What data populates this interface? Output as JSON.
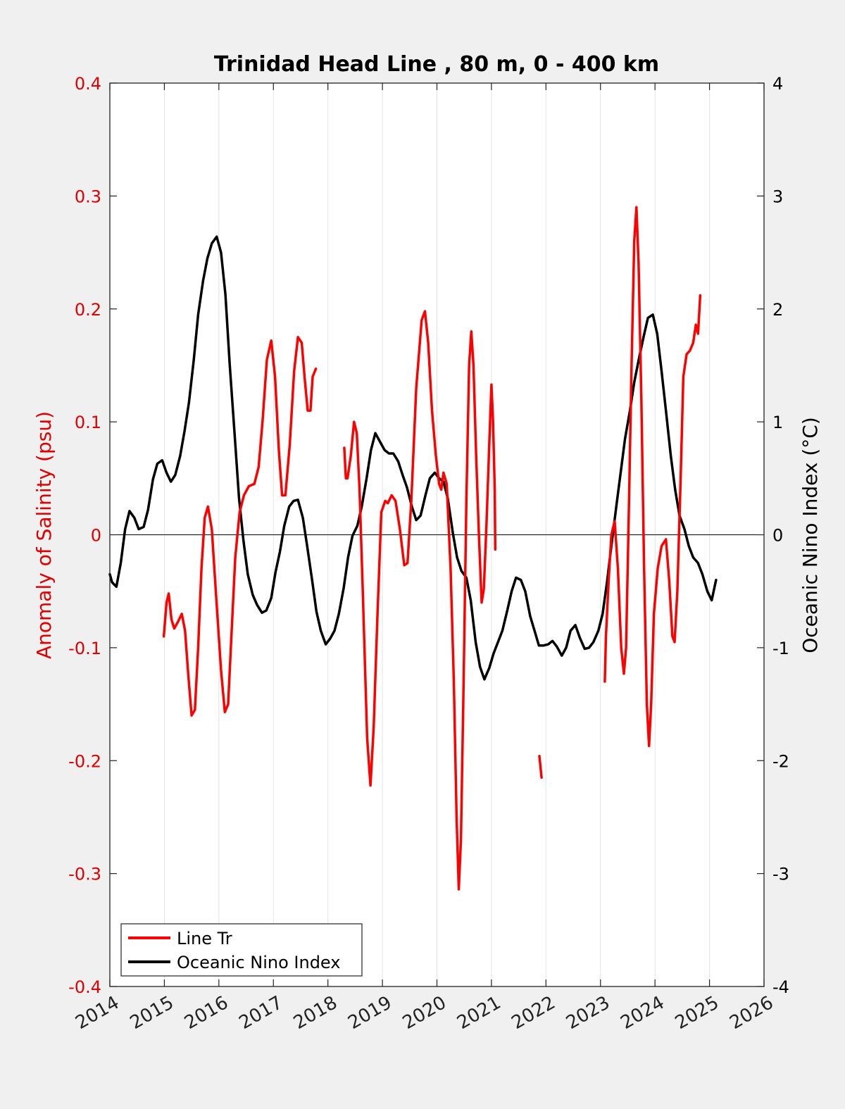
{
  "chart_data": {
    "type": "line",
    "title": "Trinidad Head Line , 80 m, 0 - 400 km",
    "ylabel_left": "Anomaly of Salinity (psu)",
    "ylabel_right": "Oceanic Nino Index (°C)",
    "xlim": [
      2014,
      2026
    ],
    "ylim_left": [
      -0.4,
      0.4
    ],
    "ylim_right": [
      -4,
      4
    ],
    "x_ticks": [
      "2014",
      "2015",
      "2016",
      "2017",
      "2018",
      "2019",
      "2020",
      "2021",
      "2022",
      "2023",
      "2024",
      "2025",
      "2026"
    ],
    "y_ticks_left": [
      "-0.4",
      "-0.3",
      "-0.2",
      "-0.1",
      "0",
      "0.1",
      "0.2",
      "0.3",
      "0.4"
    ],
    "y_ticks_right": [
      "-4",
      "-3",
      "-2",
      "-1",
      "0",
      "1",
      "2",
      "3",
      "4"
    ],
    "grid": "vertical",
    "legend_position": "bottom-left",
    "colors": {
      "line_tr": "#ff0000",
      "oni": "#000000"
    },
    "series": [
      {
        "name": "Line Tr",
        "axis": "left",
        "segments": [
          [
            [
              2014.99,
              -0.09
            ],
            [
              2015.04,
              -0.06
            ],
            [
              2015.08,
              -0.052
            ],
            [
              2015.13,
              -0.075
            ],
            [
              2015.18,
              -0.083
            ],
            [
              2015.25,
              -0.077
            ],
            [
              2015.32,
              -0.07
            ],
            [
              2015.38,
              -0.085
            ],
            [
              2015.44,
              -0.125
            ],
            [
              2015.5,
              -0.16
            ],
            [
              2015.56,
              -0.155
            ],
            [
              2015.62,
              -0.1
            ],
            [
              2015.68,
              -0.03
            ],
            [
              2015.74,
              0.015
            ],
            [
              2015.8,
              0.025
            ],
            [
              2015.87,
              0.005
            ],
            [
              2015.95,
              -0.055
            ],
            [
              2016.04,
              -0.12
            ],
            [
              2016.11,
              -0.157
            ],
            [
              2016.17,
              -0.15
            ],
            [
              2016.23,
              -0.09
            ],
            [
              2016.3,
              -0.02
            ],
            [
              2016.38,
              0.02
            ],
            [
              2016.46,
              0.035
            ],
            [
              2016.55,
              0.043
            ],
            [
              2016.65,
              0.045
            ],
            [
              2016.73,
              0.06
            ],
            [
              2016.8,
              0.1
            ],
            [
              2016.88,
              0.155
            ],
            [
              2016.96,
              0.172
            ],
            [
              2017.03,
              0.14
            ],
            [
              2017.1,
              0.075
            ],
            [
              2017.16,
              0.035
            ],
            [
              2017.22,
              0.035
            ],
            [
              2017.3,
              0.08
            ],
            [
              2017.38,
              0.145
            ],
            [
              2017.45,
              0.175
            ],
            [
              2017.52,
              0.17
            ],
            [
              2017.58,
              0.135
            ],
            [
              2017.63,
              0.11
            ],
            [
              2017.68,
              0.11
            ],
            [
              2017.72,
              0.14
            ],
            [
              2017.78,
              0.147
            ]
          ],
          [
            [
              2018.3,
              0.077
            ],
            [
              2018.33,
              0.05
            ],
            [
              2018.36,
              0.05
            ],
            [
              2018.42,
              0.07
            ],
            [
              2018.48,
              0.1
            ],
            [
              2018.53,
              0.09
            ],
            [
              2018.58,
              0.04
            ],
            [
              2018.64,
              -0.05
            ],
            [
              2018.72,
              -0.18
            ],
            [
              2018.78,
              -0.222
            ],
            [
              2018.84,
              -0.17
            ],
            [
              2018.91,
              -0.07
            ],
            [
              2018.98,
              0.02
            ],
            [
              2019.05,
              0.03
            ],
            [
              2019.1,
              0.028
            ],
            [
              2019.17,
              0.035
            ],
            [
              2019.24,
              0.03
            ],
            [
              2019.32,
              0.005
            ],
            [
              2019.4,
              -0.027
            ],
            [
              2019.46,
              -0.025
            ],
            [
              2019.53,
              0.03
            ],
            [
              2019.62,
              0.13
            ],
            [
              2019.72,
              0.19
            ],
            [
              2019.78,
              0.198
            ],
            [
              2019.84,
              0.17
            ],
            [
              2019.91,
              0.11
            ],
            [
              2019.98,
              0.07
            ],
            [
              2020.04,
              0.045
            ],
            [
              2020.08,
              0.04
            ],
            [
              2020.12,
              0.055
            ],
            [
              2020.18,
              0.045
            ],
            [
              2020.25,
              -0.03
            ],
            [
              2020.31,
              -0.13
            ],
            [
              2020.36,
              -0.25
            ],
            [
              2020.4,
              -0.314
            ],
            [
              2020.44,
              -0.27
            ],
            [
              2020.49,
              -0.13
            ],
            [
              2020.54,
              0.03
            ],
            [
              2020.59,
              0.15
            ],
            [
              2020.63,
              0.18
            ],
            [
              2020.67,
              0.15
            ],
            [
              2020.72,
              0.07
            ],
            [
              2020.77,
              0.0
            ],
            [
              2020.82,
              -0.06
            ],
            [
              2020.86,
              -0.048
            ],
            [
              2020.91,
              0.01
            ],
            [
              2020.96,
              0.08
            ],
            [
              2021.0,
              0.133
            ],
            [
              2021.03,
              0.1
            ],
            [
              2021.06,
              0.04
            ],
            [
              2021.07,
              -0.013
            ]
          ],
          [
            [
              2021.88,
              -0.196
            ],
            [
              2021.92,
              -0.215
            ]
          ],
          [
            [
              2023.08,
              -0.13
            ],
            [
              2023.1,
              -0.09
            ],
            [
              2023.15,
              -0.04
            ],
            [
              2023.2,
              0.0
            ],
            [
              2023.26,
              0.012
            ],
            [
              2023.32,
              -0.03
            ],
            [
              2023.38,
              -0.1
            ],
            [
              2023.43,
              -0.123
            ],
            [
              2023.47,
              -0.1
            ],
            [
              2023.52,
              0.02
            ],
            [
              2023.57,
              0.15
            ],
            [
              2023.62,
              0.26
            ],
            [
              2023.66,
              0.29
            ],
            [
              2023.7,
              0.24
            ],
            [
              2023.75,
              0.12
            ],
            [
              2023.8,
              -0.03
            ],
            [
              2023.85,
              -0.15
            ],
            [
              2023.89,
              -0.187
            ],
            [
              2023.93,
              -0.15
            ],
            [
              2023.98,
              -0.07
            ],
            [
              2024.05,
              -0.03
            ],
            [
              2024.12,
              -0.01
            ],
            [
              2024.2,
              -0.004
            ],
            [
              2024.26,
              -0.04
            ],
            [
              2024.32,
              -0.09
            ],
            [
              2024.36,
              -0.095
            ],
            [
              2024.41,
              -0.05
            ],
            [
              2024.47,
              0.05
            ],
            [
              2024.52,
              0.14
            ],
            [
              2024.58,
              0.16
            ],
            [
              2024.64,
              0.163
            ],
            [
              2024.7,
              0.17
            ],
            [
              2024.75,
              0.186
            ],
            [
              2024.79,
              0.178
            ],
            [
              2024.83,
              0.212
            ]
          ]
        ]
      },
      {
        "name": "Oceanic Nino Index",
        "axis": "right",
        "points": [
          [
            2014.0,
            -0.35
          ],
          [
            2014.04,
            -0.42
          ],
          [
            2014.12,
            -0.46
          ],
          [
            2014.2,
            -0.25
          ],
          [
            2014.28,
            0.05
          ],
          [
            2014.36,
            0.21
          ],
          [
            2014.45,
            0.15
          ],
          [
            2014.53,
            0.05
          ],
          [
            2014.62,
            0.07
          ],
          [
            2014.7,
            0.22
          ],
          [
            2014.79,
            0.49
          ],
          [
            2014.87,
            0.63
          ],
          [
            2014.96,
            0.66
          ],
          [
            2015.04,
            0.55
          ],
          [
            2015.12,
            0.47
          ],
          [
            2015.2,
            0.53
          ],
          [
            2015.29,
            0.7
          ],
          [
            2015.37,
            0.92
          ],
          [
            2015.45,
            1.17
          ],
          [
            2015.54,
            1.55
          ],
          [
            2015.62,
            1.95
          ],
          [
            2015.71,
            2.25
          ],
          [
            2015.79,
            2.45
          ],
          [
            2015.87,
            2.58
          ],
          [
            2015.96,
            2.64
          ],
          [
            2016.04,
            2.5
          ],
          [
            2016.12,
            2.13
          ],
          [
            2016.2,
            1.5
          ],
          [
            2016.29,
            0.88
          ],
          [
            2016.37,
            0.32
          ],
          [
            2016.45,
            -0.05
          ],
          [
            2016.53,
            -0.35
          ],
          [
            2016.62,
            -0.53
          ],
          [
            2016.7,
            -0.62
          ],
          [
            2016.79,
            -0.69
          ],
          [
            2016.87,
            -0.67
          ],
          [
            2016.96,
            -0.56
          ],
          [
            2017.04,
            -0.33
          ],
          [
            2017.12,
            -0.15
          ],
          [
            2017.2,
            0.08
          ],
          [
            2017.29,
            0.25
          ],
          [
            2017.37,
            0.3
          ],
          [
            2017.45,
            0.31
          ],
          [
            2017.54,
            0.15
          ],
          [
            2017.62,
            -0.1
          ],
          [
            2017.71,
            -0.4
          ],
          [
            2017.79,
            -0.68
          ],
          [
            2017.87,
            -0.85
          ],
          [
            2017.96,
            -0.97
          ],
          [
            2018.04,
            -0.92
          ],
          [
            2018.12,
            -0.85
          ],
          [
            2018.2,
            -0.7
          ],
          [
            2018.29,
            -0.47
          ],
          [
            2018.37,
            -0.2
          ],
          [
            2018.45,
            -0.01
          ],
          [
            2018.54,
            0.08
          ],
          [
            2018.62,
            0.25
          ],
          [
            2018.71,
            0.5
          ],
          [
            2018.79,
            0.75
          ],
          [
            2018.87,
            0.9
          ],
          [
            2018.96,
            0.82
          ],
          [
            2019.04,
            0.75
          ],
          [
            2019.12,
            0.72
          ],
          [
            2019.2,
            0.72
          ],
          [
            2019.29,
            0.65
          ],
          [
            2019.37,
            0.53
          ],
          [
            2019.45,
            0.42
          ],
          [
            2019.54,
            0.25
          ],
          [
            2019.62,
            0.13
          ],
          [
            2019.7,
            0.17
          ],
          [
            2019.79,
            0.35
          ],
          [
            2019.87,
            0.5
          ],
          [
            2019.96,
            0.55
          ],
          [
            2020.04,
            0.5
          ],
          [
            2020.12,
            0.47
          ],
          [
            2020.2,
            0.32
          ],
          [
            2020.29,
            0.02
          ],
          [
            2020.37,
            -0.2
          ],
          [
            2020.45,
            -0.32
          ],
          [
            2020.54,
            -0.38
          ],
          [
            2020.62,
            -0.58
          ],
          [
            2020.71,
            -0.95
          ],
          [
            2020.79,
            -1.17
          ],
          [
            2020.87,
            -1.28
          ],
          [
            2020.96,
            -1.18
          ],
          [
            2021.04,
            -1.05
          ],
          [
            2021.12,
            -0.95
          ],
          [
            2021.2,
            -0.85
          ],
          [
            2021.29,
            -0.67
          ],
          [
            2021.37,
            -0.5
          ],
          [
            2021.45,
            -0.38
          ],
          [
            2021.54,
            -0.4
          ],
          [
            2021.62,
            -0.5
          ],
          [
            2021.71,
            -0.72
          ],
          [
            2021.79,
            -0.85
          ],
          [
            2021.87,
            -0.98
          ],
          [
            2021.96,
            -0.98
          ],
          [
            2022.04,
            -0.97
          ],
          [
            2022.12,
            -0.94
          ],
          [
            2022.2,
            -0.99
          ],
          [
            2022.29,
            -1.07
          ],
          [
            2022.37,
            -1.0
          ],
          [
            2022.45,
            -0.85
          ],
          [
            2022.54,
            -0.8
          ],
          [
            2022.62,
            -0.91
          ],
          [
            2022.71,
            -1.01
          ],
          [
            2022.79,
            -1.0
          ],
          [
            2022.87,
            -0.95
          ],
          [
            2022.96,
            -0.85
          ],
          [
            2023.04,
            -0.7
          ],
          [
            2023.12,
            -0.42
          ],
          [
            2023.2,
            -0.1
          ],
          [
            2023.29,
            0.25
          ],
          [
            2023.37,
            0.55
          ],
          [
            2023.45,
            0.85
          ],
          [
            2023.54,
            1.1
          ],
          [
            2023.62,
            1.35
          ],
          [
            2023.71,
            1.57
          ],
          [
            2023.79,
            1.75
          ],
          [
            2023.87,
            1.92
          ],
          [
            2023.96,
            1.95
          ],
          [
            2024.04,
            1.78
          ],
          [
            2024.12,
            1.45
          ],
          [
            2024.2,
            1.1
          ],
          [
            2024.29,
            0.7
          ],
          [
            2024.37,
            0.4
          ],
          [
            2024.45,
            0.17
          ],
          [
            2024.54,
            0.05
          ],
          [
            2024.62,
            -0.1
          ],
          [
            2024.7,
            -0.2
          ],
          [
            2024.79,
            -0.25
          ],
          [
            2024.87,
            -0.35
          ],
          [
            2024.96,
            -0.5
          ],
          [
            2025.04,
            -0.58
          ],
          [
            2025.12,
            -0.4
          ]
        ]
      }
    ]
  }
}
